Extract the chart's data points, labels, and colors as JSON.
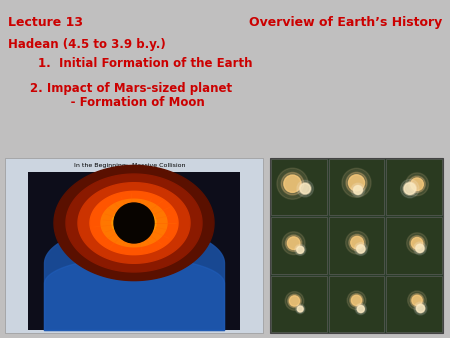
{
  "background_color": "#c0bfbf",
  "title_left": "Lecture 13",
  "title_right": "Overview of Earth’s History",
  "title_color": "#cc0000",
  "title_fontsize": 9,
  "line1": "Hadean (4.5 to 3.9 b.y.)",
  "line2": "1.  Initial Formation of the Earth",
  "line3": "2. Impact of Mars-sized planet",
  "line4": "     - Formation of Moon",
  "text_color": "#cc0000",
  "text_fontsize": 8.5,
  "img1_label": "In the Beginning:  Massive Collision",
  "img1_bg": "#ccd5e0",
  "img2_bg": "#2a3d2a"
}
